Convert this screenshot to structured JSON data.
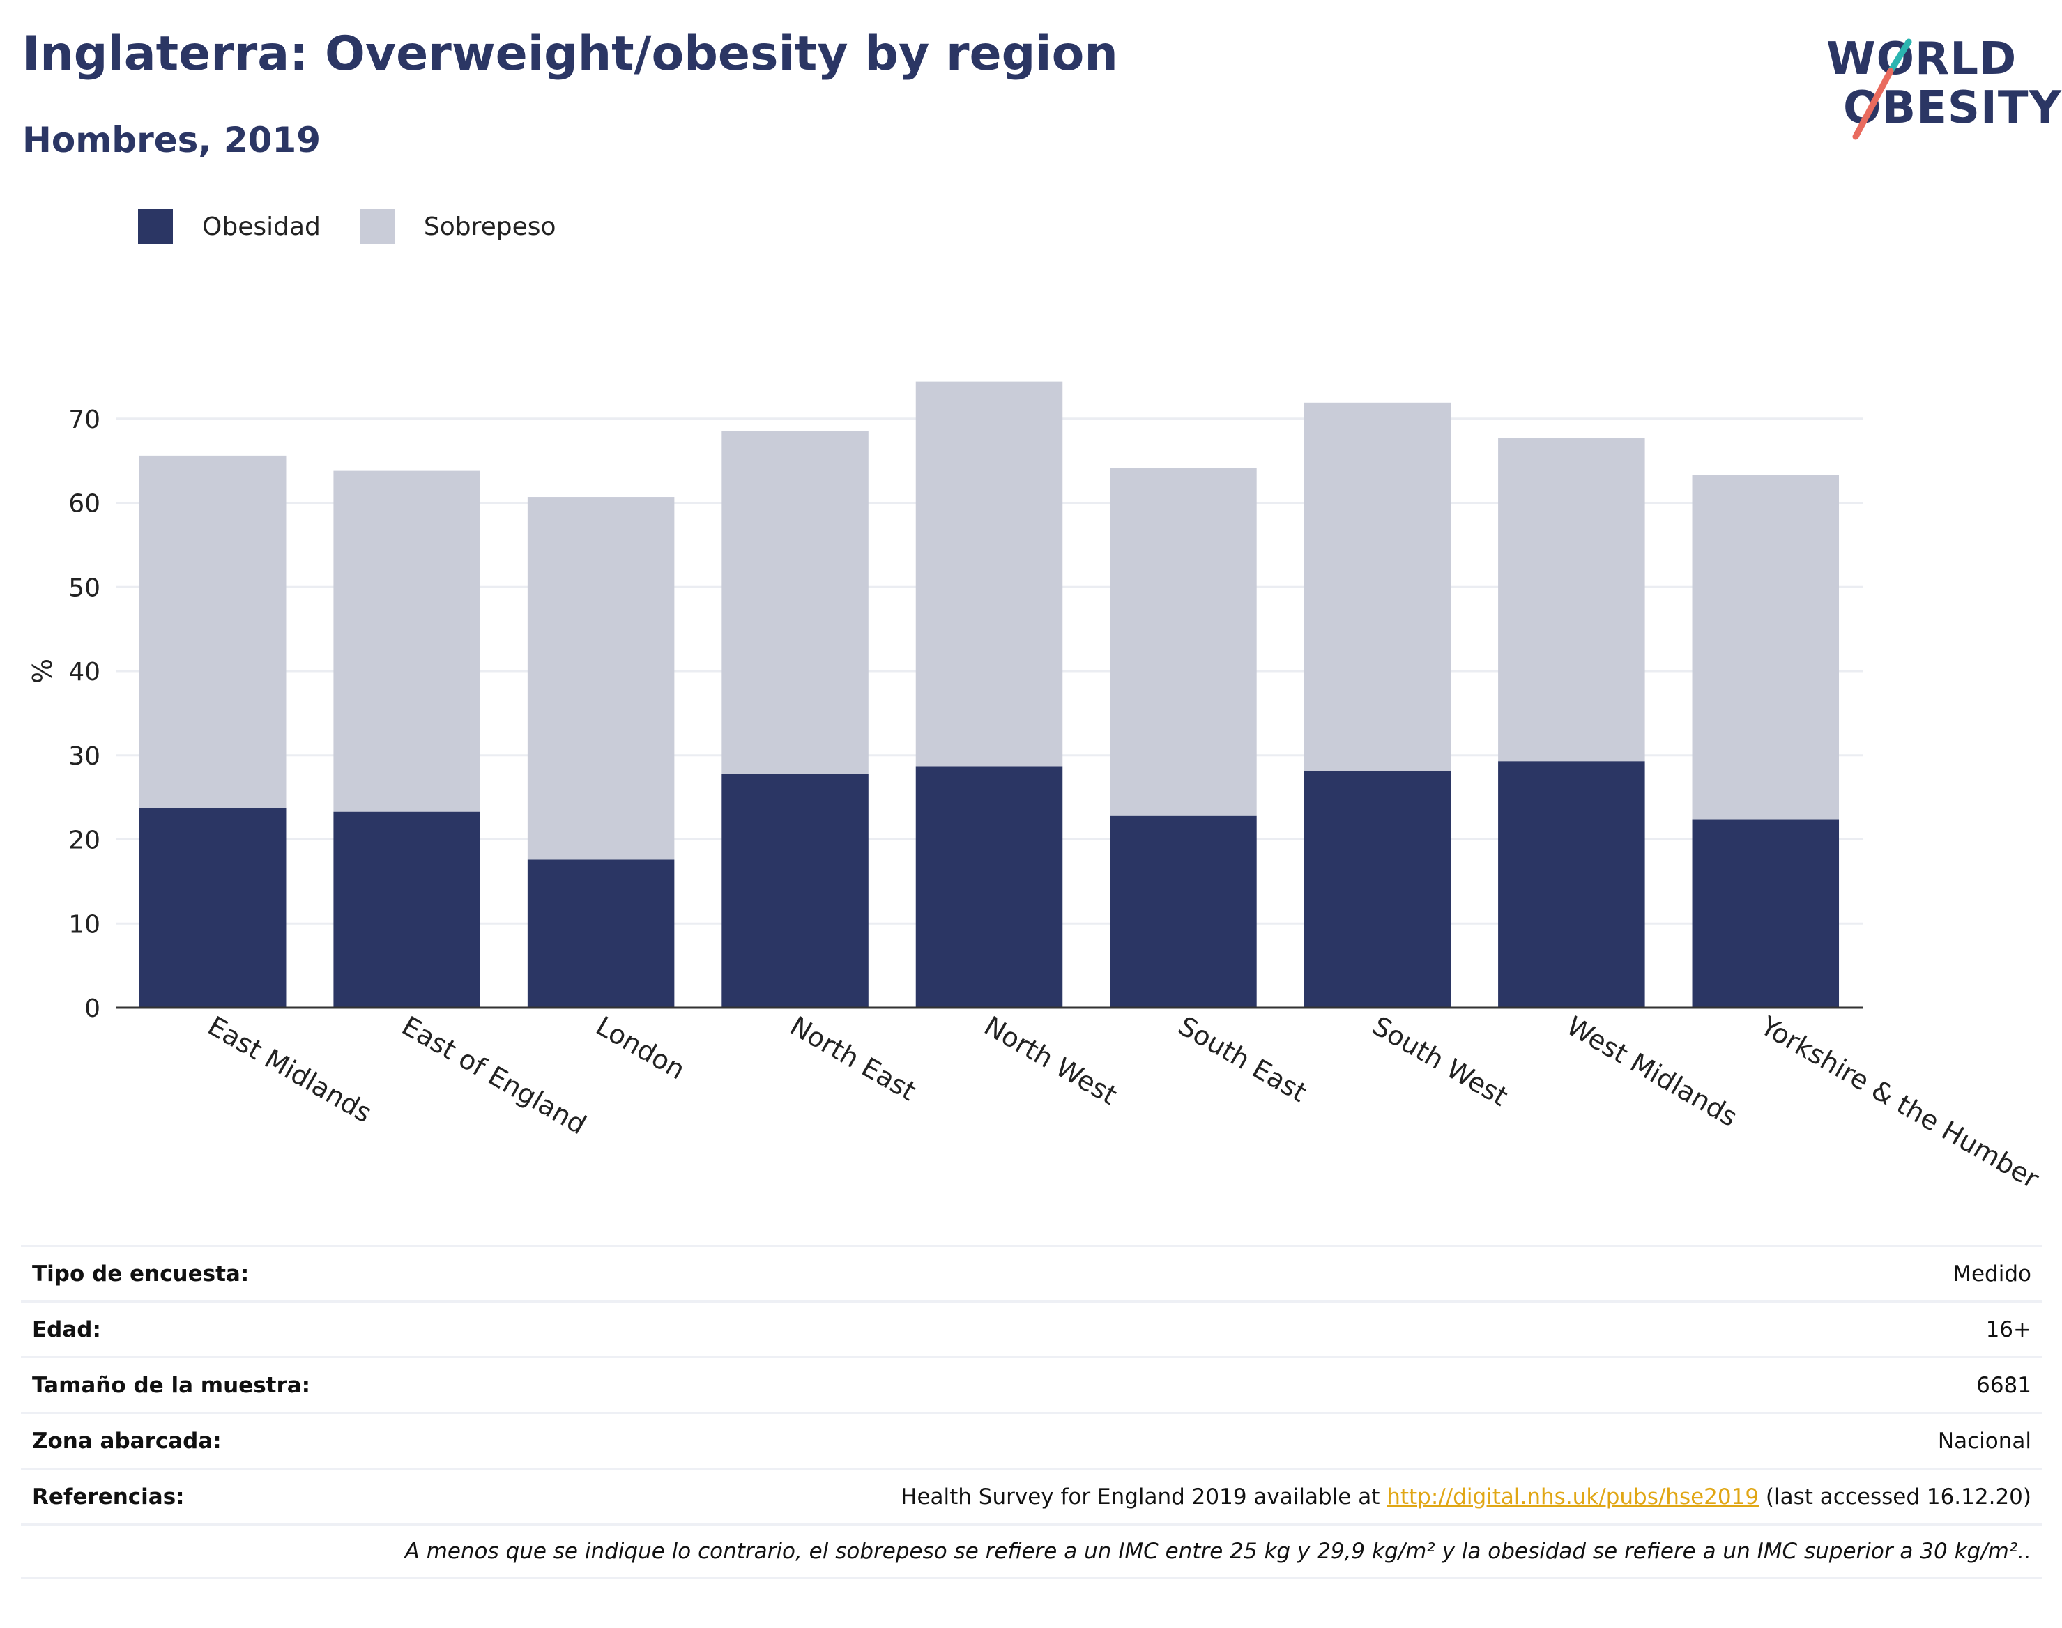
{
  "header": {
    "title": "Inglaterra: Overweight/obesity by region",
    "subtitle": "Hombres, 2019"
  },
  "logo": {
    "line1": "WORLD",
    "line2": "OBESITY",
    "colors": {
      "text": "#2b3664",
      "stroke_top": "#2bb5b0",
      "stroke_bottom": "#e96b5e"
    }
  },
  "legend": {
    "items": [
      {
        "label": "Obesidad",
        "color": "#2b3664"
      },
      {
        "label": "Sobrepeso",
        "color": "#c9ccd8"
      }
    ]
  },
  "chart_data": {
    "type": "bar",
    "stacked": true,
    "categories": [
      "East Midlands",
      "East of England",
      "London",
      "North East",
      "North West",
      "South East",
      "South West",
      "West Midlands",
      "Yorkshire & the Humber"
    ],
    "series": [
      {
        "name": "Obesidad",
        "color": "#2b3664",
        "values": [
          23.7,
          23.3,
          17.6,
          27.8,
          28.7,
          22.8,
          28.1,
          29.3,
          22.4
        ]
      },
      {
        "name": "Sobrepeso",
        "color": "#c9ccd8",
        "values": [
          41.9,
          40.5,
          43.1,
          40.7,
          45.7,
          41.3,
          43.8,
          38.4,
          40.9
        ]
      }
    ],
    "title": "",
    "xlabel": "",
    "ylabel": "%",
    "ylim": [
      0,
      80
    ],
    "yticks": [
      0,
      10,
      20,
      30,
      40,
      50,
      60,
      70
    ],
    "grid": true,
    "legend_position": "top-left"
  },
  "info": {
    "rows": [
      {
        "label": "Tipo de encuesta:",
        "value": "Medido"
      },
      {
        "label": "Edad:",
        "value": "16+"
      },
      {
        "label": "Tamaño de la muestra:",
        "value": "6681"
      },
      {
        "label": "Zona abarcada:",
        "value": "Nacional"
      }
    ],
    "references": {
      "label": "Referencias:",
      "text_before": "Health Survey for England 2019 available at ",
      "link": "http://digital.nhs.uk/pubs/hse2019",
      "text_after": " (last accessed 16.12.20)"
    },
    "note": "A menos que se indique lo contrario, el sobrepeso se refiere a un IMC entre 25 kg y 29,9 kg/m² y la obesidad se refiere a un IMC superior a 30 kg/m².."
  }
}
